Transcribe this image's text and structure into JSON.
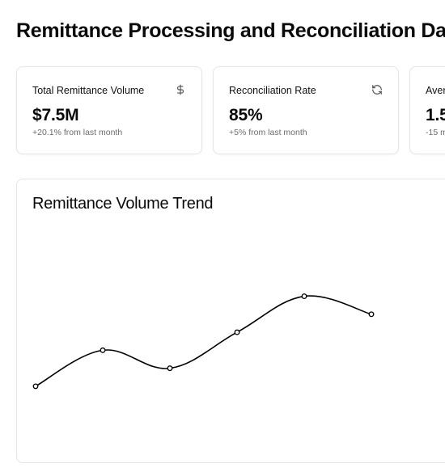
{
  "header": {
    "title": "Remittance Processing and Reconciliation Da"
  },
  "cards": [
    {
      "label": "Total Remittance Volume",
      "value": "$7.5M",
      "change": "+20.1% from last month",
      "icon": "dollar-icon"
    },
    {
      "label": "Reconciliation Rate",
      "value": "85%",
      "change": "+5% from last month",
      "icon": "refresh-icon"
    },
    {
      "label": "Aver",
      "value": "1.5",
      "change": "-15 m",
      "icon": ""
    }
  ],
  "trend_chart": {
    "title": "Remittance Volume Trend",
    "line_color": "#000000"
  },
  "chart_data": {
    "type": "line",
    "title": "Remittance Volume Trend",
    "xlabel": "",
    "ylabel": "",
    "grid": false,
    "series": [
      {
        "values": [
          40,
          60,
          50,
          70,
          90,
          80
        ]
      }
    ],
    "ylim": [
      0,
      110
    ]
  }
}
